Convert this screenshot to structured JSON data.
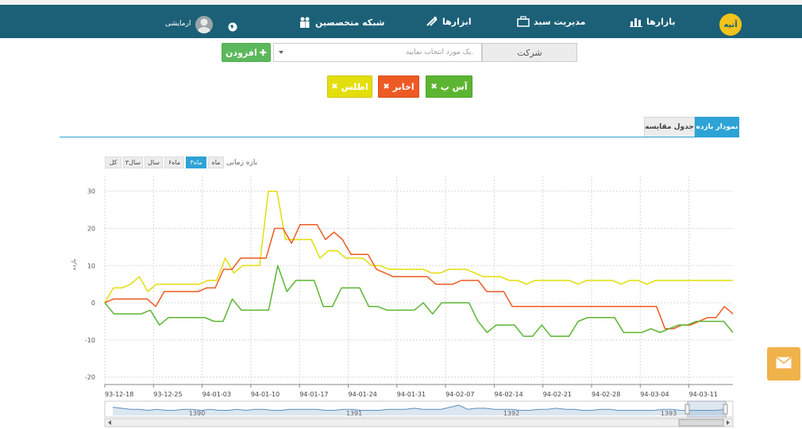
{
  "nav": {
    "markets": "بازارها",
    "portfolio": "مدیریت سبد",
    "tools": "ابزارها",
    "experts": "شبکه متخصصین",
    "user": "ارمایشی",
    "logo_text": "آتیه"
  },
  "search": {
    "company_label": "شرکت",
    "placeholder": "یک مورد انتخاب نمایید.",
    "add_label": "افزودن"
  },
  "tags": [
    {
      "label": "آس پ",
      "color": "#5cb531"
    },
    {
      "label": "اخابر",
      "color": "#ee5a24"
    },
    {
      "label": "اطلس",
      "color": "#e3de0c"
    }
  ],
  "tabs": {
    "chart": "نمودار بازده",
    "table": "جدول مقایسه"
  },
  "range": {
    "label": "بازه زمانی",
    "options": [
      "ماه",
      "۳ماه",
      "۶ماه",
      "سال",
      "۳سال",
      "کل"
    ],
    "active": "۳ماه"
  },
  "chart_data": {
    "type": "line",
    "ylabel": "بازده",
    "ylim": [
      -22,
      34
    ],
    "yticks": [
      30,
      20,
      10,
      0,
      -10,
      -20
    ],
    "xticks": [
      "93-12-18",
      "93-12-25",
      "94-01-03",
      "94-01-10",
      "94-01-17",
      "94-01-24",
      "94-01-31",
      "94-02-07",
      "94-02-14",
      "94-02-21",
      "94-02-28",
      "94-03-04",
      "94-03-11"
    ],
    "navigator_labels": [
      "1390",
      "1391",
      "1392",
      "1393"
    ],
    "series": [
      {
        "name": "اطلس",
        "color": "#e3de0c",
        "values": [
          0,
          4,
          4,
          5,
          7,
          3,
          5,
          5,
          5,
          5,
          5,
          5,
          6,
          6,
          12,
          8,
          10,
          10,
          10,
          30,
          30,
          17,
          17,
          17,
          17,
          12,
          14,
          14,
          12,
          12,
          12,
          10,
          10,
          9,
          9,
          9,
          9,
          9,
          8,
          8,
          9,
          9,
          9,
          8,
          7,
          7,
          7,
          6,
          6,
          5,
          6,
          6,
          6,
          6,
          6,
          5,
          6,
          6,
          6,
          6,
          5,
          6,
          6,
          5,
          6,
          6,
          6,
          6,
          6,
          6,
          6,
          6,
          6,
          6
        ]
      },
      {
        "name": "اخابر",
        "color": "#ee5a24",
        "values": [
          0,
          1,
          1,
          1,
          1,
          1,
          -1,
          3,
          3,
          3,
          3,
          3,
          4,
          4,
          9,
          9,
          12,
          12,
          12,
          12,
          20,
          20,
          16,
          21,
          21,
          21,
          17,
          19,
          17,
          13,
          13,
          13,
          9,
          8,
          7,
          7,
          7,
          7,
          7,
          5,
          5,
          5,
          6,
          6,
          6,
          3,
          3,
          3,
          -1,
          -1,
          -1,
          -1,
          -1,
          -1,
          -1,
          -1,
          -1,
          -1,
          -1,
          -1,
          -1,
          -1,
          -1,
          -1,
          -1,
          -1,
          -7,
          -7,
          -6,
          -6,
          -5,
          -4,
          -4,
          -1,
          -3
        ]
      },
      {
        "name": "آس پ",
        "color": "#5cb531",
        "values": [
          0,
          -3,
          -3,
          -3,
          -3,
          -2,
          -6,
          -4,
          -4,
          -4,
          -4,
          -4,
          -5,
          -5,
          1,
          -2,
          -2,
          -2,
          -2,
          10,
          3,
          6,
          6,
          6,
          -1,
          -1,
          4,
          4,
          4,
          -1,
          -1,
          -2,
          -2,
          -2,
          -2,
          0,
          -3,
          0,
          0,
          0,
          0,
          -5,
          -8,
          -6,
          -6,
          -6,
          -9,
          -9,
          -6,
          -9,
          -9,
          -9,
          -5,
          -4,
          -4,
          -4,
          -4,
          -8,
          -8,
          -8,
          -7,
          -8,
          -7,
          -6,
          -6,
          -5,
          -5,
          -5,
          -5,
          -8
        ]
      }
    ]
  }
}
